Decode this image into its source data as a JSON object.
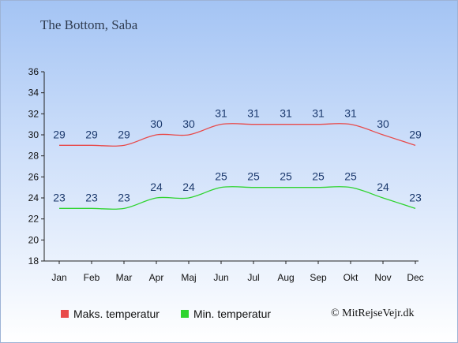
{
  "chart_data": {
    "type": "line",
    "title": "The Bottom, Saba",
    "categories": [
      "Jan",
      "Feb",
      "Mar",
      "Apr",
      "Maj",
      "Jun",
      "Jul",
      "Aug",
      "Sep",
      "Okt",
      "Nov",
      "Dec"
    ],
    "series": [
      {
        "name": "Maks. temperatur",
        "color": "#e84a4a",
        "values": [
          29,
          29,
          29,
          30,
          30,
          31,
          31,
          31,
          31,
          31,
          30,
          29
        ]
      },
      {
        "name": "Min. temperatur",
        "color": "#2ed42e",
        "values": [
          23,
          23,
          23,
          24,
          24,
          25,
          25,
          25,
          25,
          25,
          24,
          23
        ]
      }
    ],
    "ylim": [
      18,
      36
    ],
    "yticks": [
      18,
      20,
      22,
      24,
      26,
      28,
      30,
      32,
      34,
      36
    ],
    "legend_position": "bottom",
    "grid": false
  },
  "copyright": "© MitRejseVejr.dk"
}
